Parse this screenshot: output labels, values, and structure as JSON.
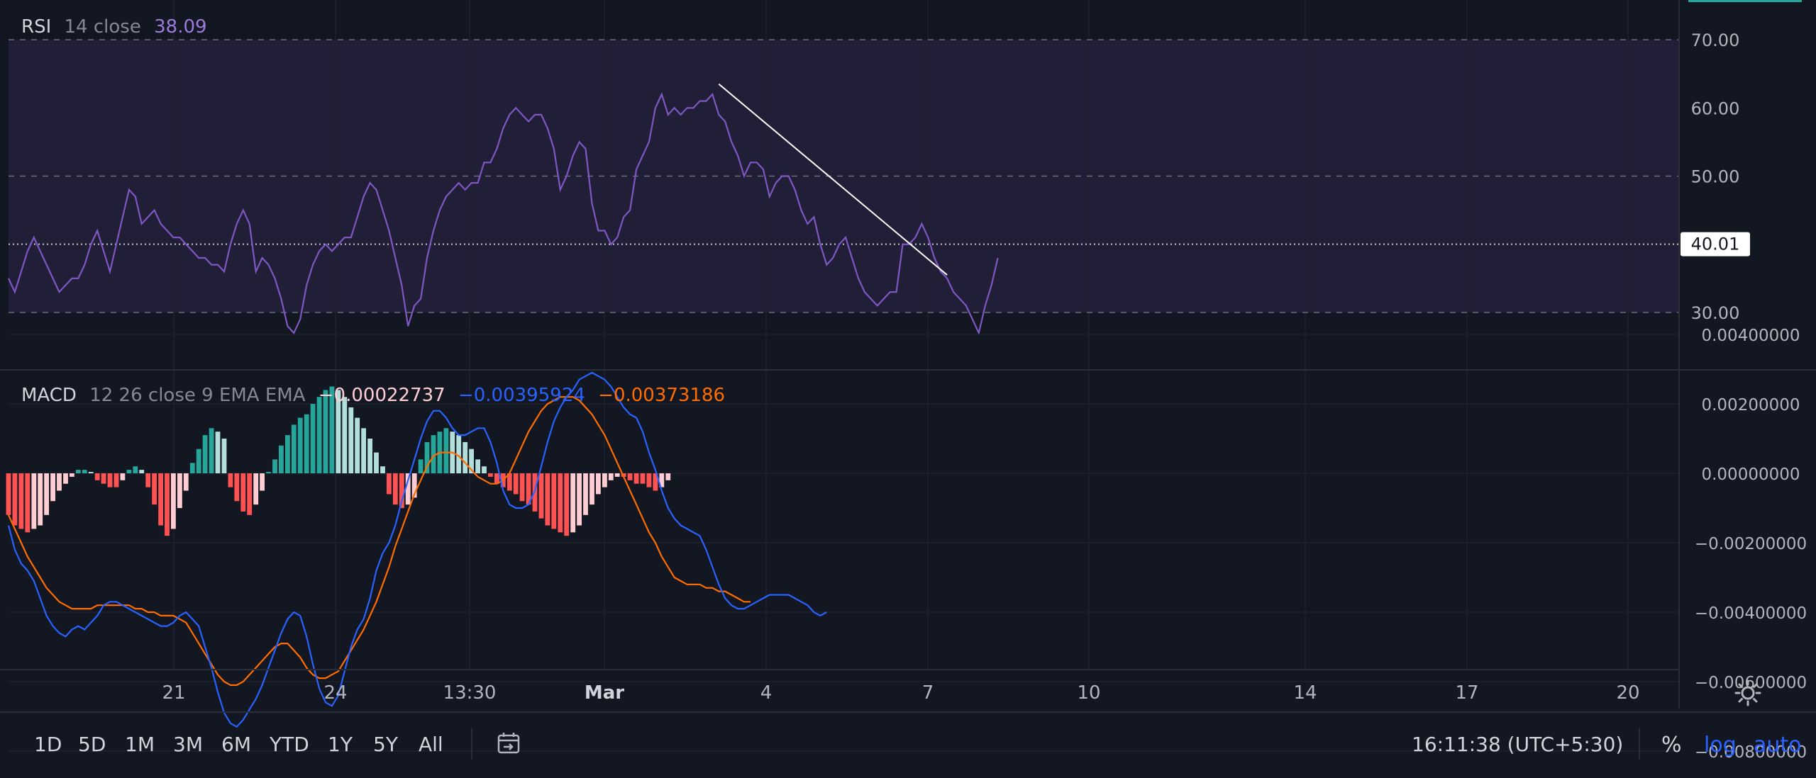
{
  "rsi": {
    "name": "RSI",
    "params": "14 close",
    "value": "38.09",
    "last_label": "40.01"
  },
  "macd": {
    "name": "MACD",
    "params": "12 26 close 9 EMA EMA",
    "hist_value": "−0.00022737",
    "macd_value": "−0.00395924",
    "signal_value": "−0.00373186"
  },
  "colors": {
    "background": "#131722",
    "rsi_band": "#211f38",
    "rsi_line": "#7e57c2",
    "macd_line": "#2962ff",
    "signal_line": "#ff6d00",
    "hist_up_strong": "#26a69a",
    "hist_up_weak": "#b2dfdb",
    "hist_down_strong": "#ff5252",
    "hist_down_weak": "#ffcdd2",
    "trendline": "#ffffff",
    "label_value": "#9b7bdc"
  },
  "bottom_bar": {
    "timeframes": [
      "1D",
      "5D",
      "1M",
      "3M",
      "6M",
      "YTD",
      "1Y",
      "5Y",
      "All"
    ],
    "time": "16:11:38 (UTC+5:30)",
    "percent": "%",
    "log": "log",
    "auto": "auto"
  },
  "chart_data": [
    {
      "type": "line",
      "title": "RSI 14 close",
      "ylim": [
        22,
        75
      ],
      "y_ticks": [
        "70.00",
        "60.00",
        "50.00",
        "40.00",
        "30.00"
      ],
      "x_tick_labels": [
        "21",
        "24",
        "13:30",
        "Mar",
        "4",
        "7",
        "10",
        "14",
        "17",
        "20"
      ],
      "bands": [
        30,
        50,
        70
      ],
      "highlight_level": 40.01,
      "series": [
        {
          "values": [
            35,
            33,
            36,
            39,
            41,
            39,
            37,
            35,
            33,
            34,
            35,
            35,
            37,
            40,
            42,
            39,
            36,
            40,
            44,
            48,
            47,
            43,
            44,
            45,
            43,
            42,
            41,
            41,
            40,
            39,
            38,
            38,
            37,
            37,
            36,
            40,
            43,
            45,
            43,
            36,
            38,
            37,
            35,
            32,
            28,
            27,
            29,
            34,
            37,
            39,
            40,
            39,
            40,
            41,
            41,
            44,
            47,
            49,
            48,
            45,
            42,
            38,
            34,
            28,
            31,
            32,
            38,
            42,
            45,
            47,
            48,
            49,
            48,
            49,
            49,
            52,
            52,
            54,
            57,
            59,
            60,
            59,
            58,
            59,
            59,
            57,
            54,
            48,
            50,
            53,
            55,
            54,
            46,
            42,
            42,
            40,
            41,
            44,
            45,
            51,
            53,
            55,
            60,
            62,
            59,
            60,
            59,
            60,
            60,
            61,
            61,
            62,
            59,
            58,
            55,
            53,
            50,
            52,
            52,
            51,
            47,
            49,
            50,
            50,
            48,
            45,
            43,
            44,
            40,
            37,
            38,
            40,
            41,
            38,
            35,
            33,
            32,
            31,
            32,
            33,
            33,
            40,
            40,
            41,
            43,
            41,
            38,
            36,
            35,
            33,
            32,
            31,
            29,
            27,
            31,
            34,
            38
          ]
        }
      ],
      "trendline": [
        [
          112,
          63.5
        ],
        [
          148,
          35.5
        ]
      ]
    },
    {
      "type": "line",
      "title": "MACD 12 26 close 9 EMA EMA",
      "ylim": [
        -0.0081,
        0.0041
      ],
      "y_ticks": [
        "0.00400000",
        "0.00200000",
        "0.00000000",
        "−0.00200000",
        "−0.00400000",
        "−0.00600000",
        "−0.00800000"
      ],
      "series": [
        {
          "name": "MACD",
          "values": [
            -0.0015,
            -0.0022,
            -0.0026,
            -0.0028,
            -0.0031,
            -0.0036,
            -0.0041,
            -0.0044,
            -0.0046,
            -0.0047,
            -0.0045,
            -0.0044,
            -0.0045,
            -0.0043,
            -0.0041,
            -0.0038,
            -0.0037,
            -0.0037,
            -0.0038,
            -0.0039,
            -0.004,
            -0.0041,
            -0.0042,
            -0.0043,
            -0.0044,
            -0.0044,
            -0.0043,
            -0.0041,
            -0.004,
            -0.0042,
            -0.0044,
            -0.005,
            -0.0056,
            -0.0063,
            -0.0069,
            -0.0072,
            -0.0073,
            -0.0071,
            -0.0068,
            -0.0065,
            -0.0061,
            -0.0056,
            -0.0051,
            -0.0046,
            -0.0042,
            -0.004,
            -0.0041,
            -0.0047,
            -0.0055,
            -0.0062,
            -0.0066,
            -0.0067,
            -0.0064,
            -0.0057,
            -0.005,
            -0.0045,
            -0.0042,
            -0.0036,
            -0.0028,
            -0.0023,
            -0.002,
            -0.0015,
            -0.0008,
            -0.0002,
            0.0004,
            0.001,
            0.0015,
            0.0018,
            0.0018,
            0.0016,
            0.0013,
            0.0011,
            0.0011,
            0.0012,
            0.0013,
            0.0013,
            0.0009,
            0.0003,
            -0.0005,
            -0.0009,
            -0.001,
            -0.001,
            -0.0009,
            -0.0005,
            0.0002,
            0.0009,
            0.0015,
            0.0019,
            0.0022,
            0.0024,
            0.0027,
            0.0028,
            0.0029,
            0.0028,
            0.0027,
            0.0025,
            0.0022,
            0.0019,
            0.0017,
            0.0016,
            0.0012,
            0.0006,
            0.0001,
            -0.0005,
            -0.001,
            -0.0013,
            -0.0015,
            -0.0016,
            -0.0017,
            -0.0018,
            -0.0022,
            -0.0027,
            -0.0032,
            -0.0036,
            -0.0038,
            -0.0039,
            -0.0039,
            -0.0038,
            -0.0037,
            -0.0036,
            -0.0035,
            -0.0035,
            -0.0035,
            -0.0035,
            -0.0036,
            -0.0037,
            -0.0038,
            -0.004,
            -0.0041,
            -0.004
          ]
        },
        {
          "name": "Signal",
          "values": [
            -0.0012,
            -0.0016,
            -0.002,
            -0.0024,
            -0.0027,
            -0.003,
            -0.0033,
            -0.0035,
            -0.0037,
            -0.0038,
            -0.0039,
            -0.0039,
            -0.0039,
            -0.0039,
            -0.0038,
            -0.0038,
            -0.0038,
            -0.0038,
            -0.0038,
            -0.0038,
            -0.0039,
            -0.0039,
            -0.004,
            -0.004,
            -0.0041,
            -0.0041,
            -0.0041,
            -0.0042,
            -0.0043,
            -0.0046,
            -0.0049,
            -0.0052,
            -0.0055,
            -0.0058,
            -0.006,
            -0.0061,
            -0.0061,
            -0.006,
            -0.0058,
            -0.0056,
            -0.0054,
            -0.0052,
            -0.005,
            -0.0049,
            -0.0049,
            -0.0051,
            -0.0053,
            -0.0056,
            -0.0058,
            -0.0059,
            -0.0059,
            -0.0058,
            -0.0057,
            -0.0054,
            -0.0051,
            -0.0048,
            -0.0045,
            -0.0041,
            -0.0037,
            -0.0032,
            -0.0027,
            -0.0021,
            -0.0016,
            -0.0011,
            -0.0006,
            -0.0002,
            0.0002,
            0.0005,
            0.0006,
            0.0006,
            0.0006,
            0.0005,
            0.0003,
            0.0001,
            -0.0001,
            -0.0002,
            -0.0003,
            -0.0003,
            -0.0002,
            0.0,
            0.0004,
            0.0008,
            0.0012,
            0.0015,
            0.0018,
            0.002,
            0.0021,
            0.0022,
            0.0022,
            0.0022,
            0.0021,
            0.0019,
            0.0017,
            0.0014,
            0.0011,
            0.0007,
            0.0003,
            -0.0001,
            -0.0005,
            -0.0009,
            -0.0013,
            -0.0017,
            -0.002,
            -0.0024,
            -0.0027,
            -0.003,
            -0.0031,
            -0.0032,
            -0.0032,
            -0.0032,
            -0.0033,
            -0.0033,
            -0.0034,
            -0.0034,
            -0.0035,
            -0.0036,
            -0.0037,
            -0.0037
          ]
        },
        {
          "name": "Histogram",
          "values": [
            -0.0012,
            -0.0015,
            -0.0016,
            -0.0017,
            -0.0016,
            -0.0015,
            -0.0012,
            -0.0008,
            -0.0005,
            -0.0003,
            -0.0001,
            0.0001,
            0.0001,
            0.0,
            -0.0002,
            -0.0003,
            -0.0004,
            -0.0004,
            -0.0002,
            0.0001,
            0.0002,
            0.0001,
            -0.0004,
            -0.0009,
            -0.0015,
            -0.0018,
            -0.0016,
            -0.001,
            -0.0005,
            0.0003,
            0.0007,
            0.0011,
            0.0013,
            0.0012,
            0.001,
            -0.0004,
            -0.0008,
            -0.0011,
            -0.0012,
            -0.0009,
            -0.0005,
            0.0,
            0.0004,
            0.0008,
            0.0011,
            0.0014,
            0.0016,
            0.0017,
            0.002,
            0.0022,
            0.0024,
            0.0025,
            0.0024,
            0.0022,
            0.0019,
            0.0016,
            0.0013,
            0.001,
            0.0006,
            0.0002,
            -0.0006,
            -0.0009,
            -0.001,
            -0.0009,
            -0.0007,
            0.0004,
            0.0009,
            0.0011,
            0.0012,
            0.0013,
            0.0012,
            0.0011,
            0.0009,
            0.0007,
            0.0004,
            0.0002,
            -0.0001,
            -0.0003,
            -0.0004,
            -0.0005,
            -0.0006,
            -0.0008,
            -0.0009,
            -0.0011,
            -0.0013,
            -0.0015,
            -0.0016,
            -0.0017,
            -0.0018,
            -0.0017,
            -0.0015,
            -0.0012,
            -0.0009,
            -0.0006,
            -0.0004,
            -0.0002,
            -0.0001,
            -0.0001,
            -0.0002,
            -0.0003,
            -0.0003,
            -0.0004,
            -0.0005,
            -0.0004,
            -0.0002
          ]
        }
      ]
    }
  ]
}
